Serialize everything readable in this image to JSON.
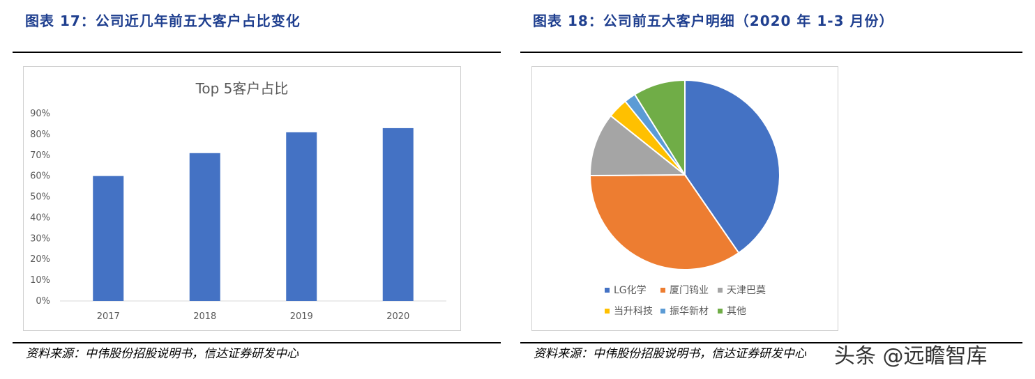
{
  "left_panel": {
    "title": "图表 17：公司近几年前五大客户占比变化",
    "source": "资料来源：中伟股份招股说明书，信达证券研发中心"
  },
  "right_panel": {
    "title": "图表 18：公司前五大客户明细（2020 年 1-3 月份）",
    "source": "资料来源：中伟股份招股说明书，信达证券研发中心"
  },
  "watermark": "头条 @远瞻智库",
  "colors": {
    "bar": "#4472c4",
    "title_blue": "#1f3f8f",
    "slices": [
      "#4472c4",
      "#ed7d31",
      "#a5a5a5",
      "#ffc000",
      "#5b9bd5",
      "#70ad47"
    ]
  },
  "chart_data": [
    {
      "type": "bar",
      "title": "Top 5客户占比",
      "categories": [
        "2017",
        "2018",
        "2019",
        "2020"
      ],
      "values": [
        60,
        71,
        81,
        83
      ],
      "ylim": [
        0,
        90
      ],
      "yticks": [
        "0%",
        "10%",
        "20%",
        "30%",
        "40%",
        "50%",
        "60%",
        "70%",
        "80%",
        "90%"
      ],
      "grid": false,
      "legend": "none"
    },
    {
      "type": "pie",
      "labels": [
        "LG化学",
        "厦门钨业",
        "天津巴莫",
        "当升科技",
        "振华新材",
        "其他"
      ],
      "values": [
        41,
        35,
        11,
        3.5,
        2,
        9
      ],
      "legend": "bottom"
    }
  ]
}
